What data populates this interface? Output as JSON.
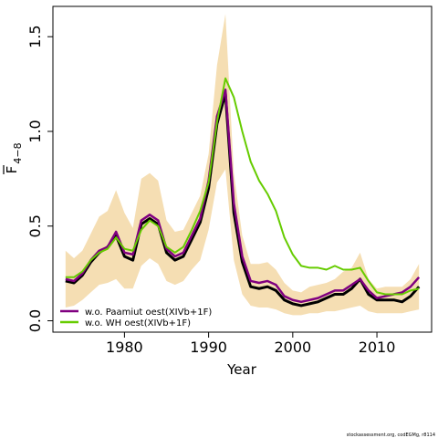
{
  "chart_data": {
    "type": "line",
    "xlabel": "Year",
    "ylabel_main": "F",
    "ylabel_sub": "4−8",
    "xlim": [
      1971.5,
      2016.5
    ],
    "ylim": [
      -0.06,
      1.66
    ],
    "xticks": [
      1980,
      1990,
      2000,
      2010
    ],
    "yticks": [
      0.0,
      0.5,
      1.0,
      1.5
    ],
    "ytick_labels": [
      "0.0",
      "0.5",
      "1.0",
      "1.5"
    ],
    "x": [
      1973,
      1974,
      1975,
      1976,
      1977,
      1978,
      1979,
      1980,
      1981,
      1982,
      1983,
      1984,
      1985,
      1986,
      1987,
      1988,
      1989,
      1990,
      1991,
      1992,
      1993,
      1994,
      1995,
      1996,
      1997,
      1998,
      1999,
      2000,
      2001,
      2002,
      2003,
      2004,
      2005,
      2006,
      2007,
      2008,
      2009,
      2010,
      2011,
      2012,
      2013,
      2014,
      2015
    ],
    "band": {
      "color": "#f5deb3",
      "upper": [
        0.37,
        0.33,
        0.37,
        0.46,
        0.55,
        0.58,
        0.69,
        0.57,
        0.49,
        0.75,
        0.78,
        0.74,
        0.53,
        0.47,
        0.48,
        0.57,
        0.66,
        0.88,
        1.35,
        1.62,
        0.78,
        0.45,
        0.3,
        0.3,
        0.31,
        0.27,
        0.2,
        0.16,
        0.15,
        0.18,
        0.19,
        0.2,
        0.22,
        0.26,
        0.28,
        0.36,
        0.22,
        0.17,
        0.18,
        0.18,
        0.18,
        0.22,
        0.3
      ],
      "lower": [
        0.07,
        0.08,
        0.11,
        0.15,
        0.19,
        0.2,
        0.22,
        0.17,
        0.17,
        0.29,
        0.33,
        0.3,
        0.21,
        0.19,
        0.21,
        0.27,
        0.32,
        0.48,
        0.73,
        0.8,
        0.32,
        0.14,
        0.08,
        0.07,
        0.07,
        0.06,
        0.04,
        0.03,
        0.03,
        0.04,
        0.04,
        0.05,
        0.05,
        0.06,
        0.07,
        0.08,
        0.05,
        0.04,
        0.04,
        0.04,
        0.04,
        0.05,
        0.06
      ]
    },
    "series": [
      {
        "color": "#000000",
        "width": 3,
        "values": [
          0.21,
          0.2,
          0.24,
          0.31,
          0.36,
          0.39,
          0.45,
          0.34,
          0.32,
          0.51,
          0.54,
          0.51,
          0.36,
          0.32,
          0.34,
          0.43,
          0.52,
          0.7,
          1.04,
          1.2,
          0.57,
          0.31,
          0.18,
          0.17,
          0.18,
          0.16,
          0.11,
          0.09,
          0.08,
          0.09,
          0.1,
          0.12,
          0.14,
          0.14,
          0.17,
          0.22,
          0.14,
          0.11,
          0.11,
          0.11,
          0.1,
          0.13,
          0.18
        ]
      },
      {
        "name": "w.o. Paamiut   oest(XIVb+1F)",
        "color": "#800080",
        "width": 2.5,
        "values": [
          0.22,
          0.21,
          0.25,
          0.32,
          0.37,
          0.39,
          0.47,
          0.36,
          0.35,
          0.53,
          0.56,
          0.53,
          0.38,
          0.34,
          0.36,
          0.45,
          0.54,
          0.74,
          1.08,
          1.22,
          0.62,
          0.34,
          0.21,
          0.2,
          0.21,
          0.19,
          0.13,
          0.11,
          0.1,
          0.11,
          0.12,
          0.14,
          0.16,
          0.16,
          0.19,
          0.22,
          0.16,
          0.12,
          0.13,
          0.14,
          0.15,
          0.18,
          0.23
        ]
      },
      {
        "name": "w.o. WH   oest(XIVb+1F)",
        "color": "#66cc00",
        "width": 2,
        "values": [
          0.23,
          0.23,
          0.26,
          0.32,
          0.36,
          0.38,
          0.44,
          0.38,
          0.37,
          0.48,
          0.53,
          0.5,
          0.39,
          0.36,
          0.39,
          0.48,
          0.58,
          0.73,
          1.05,
          1.28,
          1.18,
          1.0,
          0.84,
          0.74,
          0.67,
          0.58,
          0.44,
          0.35,
          0.29,
          0.28,
          0.28,
          0.27,
          0.29,
          0.27,
          0.27,
          0.28,
          0.21,
          0.15,
          0.14,
          0.14,
          0.14,
          0.16,
          0.17
        ]
      }
    ]
  },
  "footer_text": "stockassessment.org, codEGMg, r8114"
}
